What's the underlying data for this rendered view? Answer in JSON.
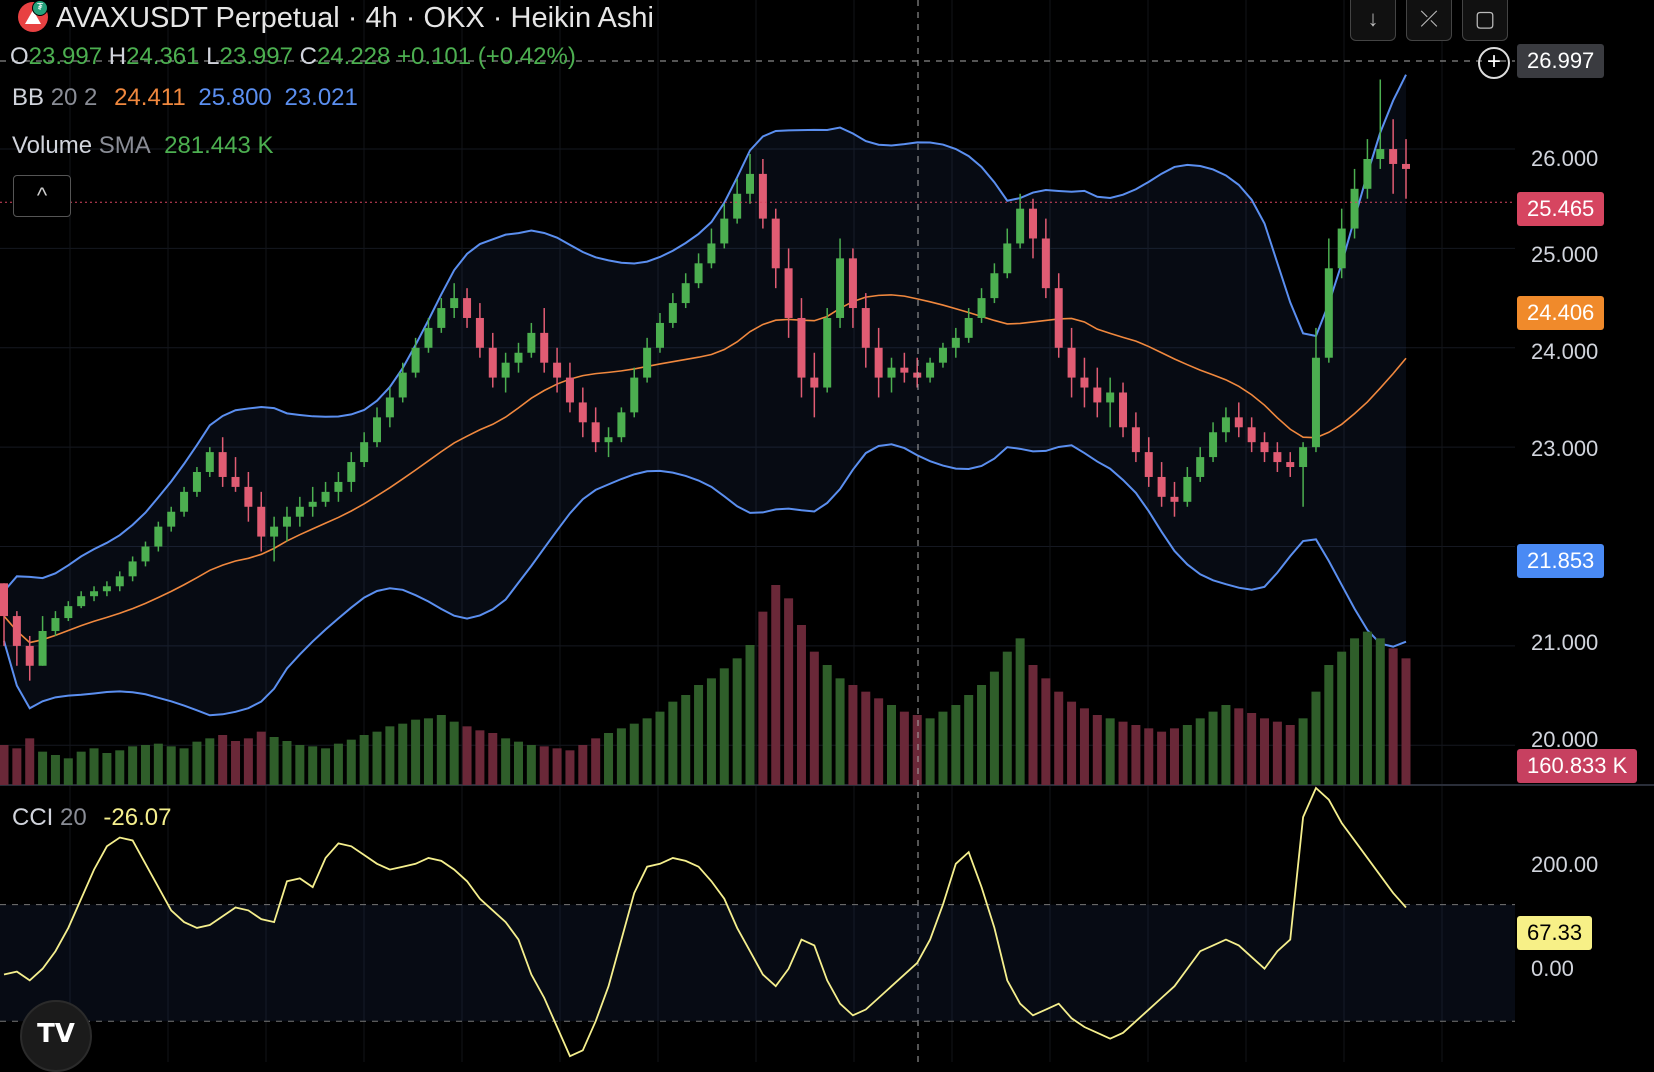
{
  "header": {
    "title": "AVAXUSDT Perpetual · 4h · OKX · Heikin Ashi",
    "ohlc": {
      "o_label": "O",
      "o": "23.997",
      "h_label": "H",
      "h": "24.361",
      "l_label": "L",
      "l": "23.997",
      "c_label": "C",
      "c": "24.228",
      "change": "+0.101 (+0.42%)"
    }
  },
  "indicators": {
    "bb": {
      "label": "BB",
      "params": "20 2",
      "basis": "24.411",
      "upper": "25.800",
      "lower": "23.021"
    },
    "volume": {
      "label": "Volume",
      "ma": "SMA",
      "value": "281.443 K"
    },
    "cci": {
      "label": "CCI",
      "params": "20",
      "value": "-26.07"
    }
  },
  "price_axis": {
    "ticks": [
      "26.000",
      "25.000",
      "24.000",
      "23.000",
      "21.000",
      "20.000"
    ],
    "tags": {
      "crosshair": "26.997",
      "last_price": "25.465",
      "bb_basis": "24.406",
      "bb_lower": "21.853",
      "volume": "160.833 K"
    }
  },
  "cci_axis": {
    "ticks": [
      "200.00",
      "0.00"
    ],
    "tag": "67.33"
  },
  "toolbar": {
    "down_icon": "↓",
    "collapse_icon": "⤫",
    "fullscreen_icon": "▢",
    "collapse_legend_icon": "^"
  },
  "colors": {
    "up": "#4caf50",
    "down": "#e05c73",
    "bb_band": "#5b8ff0",
    "bb_basis": "#f0883e",
    "cci": "#f5ef8d",
    "last_price": "#d64560",
    "basis_tag": "#f08a2b",
    "lower_tag": "#4a8af4",
    "volume_tag": "#c74060",
    "cci_tag": "#f7f087"
  },
  "chart_data": {
    "type": "candlestick",
    "price_range": [
      19.6,
      27.5
    ],
    "cci_range": [
      -170,
      300
    ],
    "candles": [
      [
        21.63,
        21.63,
        21.0,
        21.3
      ],
      [
        21.3,
        21.35,
        20.8,
        21.0
      ],
      [
        21.0,
        21.1,
        20.65,
        20.8
      ],
      [
        20.8,
        21.3,
        20.8,
        21.15
      ],
      [
        21.15,
        21.35,
        21.1,
        21.28
      ],
      [
        21.28,
        21.45,
        21.25,
        21.4
      ],
      [
        21.4,
        21.55,
        21.38,
        21.5
      ],
      [
        21.5,
        21.6,
        21.45,
        21.55
      ],
      [
        21.55,
        21.65,
        21.5,
        21.6
      ],
      [
        21.6,
        21.75,
        21.55,
        21.7
      ],
      [
        21.7,
        21.9,
        21.65,
        21.85
      ],
      [
        21.85,
        22.05,
        21.8,
        22.0
      ],
      [
        22.0,
        22.25,
        21.95,
        22.2
      ],
      [
        22.2,
        22.4,
        22.15,
        22.35
      ],
      [
        22.35,
        22.6,
        22.3,
        22.55
      ],
      [
        22.55,
        22.8,
        22.5,
        22.75
      ],
      [
        22.75,
        23.0,
        22.7,
        22.95
      ],
      [
        22.95,
        23.1,
        22.6,
        22.7
      ],
      [
        22.7,
        22.9,
        22.55,
        22.6
      ],
      [
        22.6,
        22.75,
        22.25,
        22.4
      ],
      [
        22.4,
        22.55,
        21.95,
        22.1
      ],
      [
        22.1,
        22.3,
        21.85,
        22.2
      ],
      [
        22.2,
        22.4,
        22.05,
        22.3
      ],
      [
        22.3,
        22.5,
        22.2,
        22.4
      ],
      [
        22.4,
        22.6,
        22.3,
        22.45
      ],
      [
        22.45,
        22.65,
        22.4,
        22.55
      ],
      [
        22.55,
        22.75,
        22.45,
        22.65
      ],
      [
        22.65,
        22.95,
        22.55,
        22.85
      ],
      [
        22.85,
        23.15,
        22.8,
        23.05
      ],
      [
        23.05,
        23.4,
        23.0,
        23.3
      ],
      [
        23.3,
        23.6,
        23.2,
        23.5
      ],
      [
        23.5,
        23.85,
        23.45,
        23.75
      ],
      [
        23.75,
        24.1,
        23.7,
        24.0
      ],
      [
        24.0,
        24.3,
        23.95,
        24.2
      ],
      [
        24.2,
        24.5,
        24.15,
        24.4
      ],
      [
        24.4,
        24.65,
        24.3,
        24.5
      ],
      [
        24.5,
        24.6,
        24.2,
        24.3
      ],
      [
        24.3,
        24.45,
        23.9,
        24.0
      ],
      [
        24.0,
        24.15,
        23.6,
        23.7
      ],
      [
        23.7,
        23.95,
        23.55,
        23.85
      ],
      [
        23.85,
        24.05,
        23.75,
        23.95
      ],
      [
        23.95,
        24.25,
        23.9,
        24.15
      ],
      [
        24.15,
        24.4,
        23.75,
        23.85
      ],
      [
        23.85,
        24.0,
        23.55,
        23.7
      ],
      [
        23.7,
        23.85,
        23.35,
        23.45
      ],
      [
        23.45,
        23.6,
        23.1,
        23.25
      ],
      [
        23.25,
        23.4,
        22.95,
        23.05
      ],
      [
        23.05,
        23.2,
        22.9,
        23.1
      ],
      [
        23.1,
        23.4,
        23.05,
        23.35
      ],
      [
        23.35,
        23.8,
        23.3,
        23.7
      ],
      [
        23.7,
        24.1,
        23.65,
        24.0
      ],
      [
        24.0,
        24.35,
        23.95,
        24.25
      ],
      [
        24.25,
        24.55,
        24.2,
        24.45
      ],
      [
        24.45,
        24.75,
        24.4,
        24.65
      ],
      [
        24.65,
        24.95,
        24.6,
        24.85
      ],
      [
        24.85,
        25.2,
        24.8,
        25.05
      ],
      [
        25.05,
        25.45,
        25.0,
        25.3
      ],
      [
        25.3,
        25.7,
        25.25,
        25.55
      ],
      [
        25.55,
        25.95,
        25.45,
        25.75
      ],
      [
        25.75,
        25.9,
        25.2,
        25.3
      ],
      [
        25.3,
        25.4,
        24.6,
        24.8
      ],
      [
        24.8,
        25.0,
        24.1,
        24.3
      ],
      [
        24.3,
        24.5,
        23.5,
        23.7
      ],
      [
        23.7,
        23.95,
        23.3,
        23.6
      ],
      [
        23.6,
        24.4,
        23.55,
        24.3
      ],
      [
        24.3,
        25.1,
        24.2,
        24.9
      ],
      [
        24.9,
        25.0,
        24.2,
        24.4
      ],
      [
        24.4,
        24.55,
        23.8,
        24.0
      ],
      [
        24.0,
        24.2,
        23.5,
        23.7
      ],
      [
        23.7,
        23.9,
        23.55,
        23.8
      ],
      [
        23.8,
        23.95,
        23.65,
        23.75
      ],
      [
        23.75,
        23.9,
        23.6,
        23.7
      ],
      [
        23.7,
        23.9,
        23.65,
        23.85
      ],
      [
        23.85,
        24.05,
        23.8,
        24.0
      ],
      [
        24.0,
        24.2,
        23.9,
        24.1
      ],
      [
        24.1,
        24.4,
        24.05,
        24.3
      ],
      [
        24.3,
        24.6,
        24.25,
        24.5
      ],
      [
        24.5,
        24.85,
        24.45,
        24.75
      ],
      [
        24.75,
        25.2,
        24.7,
        25.05
      ],
      [
        25.05,
        25.55,
        25.0,
        25.4
      ],
      [
        25.4,
        25.5,
        24.9,
        25.1
      ],
      [
        25.1,
        25.3,
        24.5,
        24.6
      ],
      [
        24.6,
        24.75,
        23.9,
        24.0
      ],
      [
        24.0,
        24.2,
        23.5,
        23.7
      ],
      [
        23.7,
        23.9,
        23.4,
        23.6
      ],
      [
        23.6,
        23.8,
        23.3,
        23.45
      ],
      [
        23.45,
        23.7,
        23.2,
        23.55
      ],
      [
        23.55,
        23.65,
        23.1,
        23.2
      ],
      [
        23.2,
        23.35,
        22.85,
        22.95
      ],
      [
        22.95,
        23.1,
        22.6,
        22.7
      ],
      [
        22.7,
        22.85,
        22.4,
        22.5
      ],
      [
        22.5,
        22.65,
        22.3,
        22.45
      ],
      [
        22.45,
        22.8,
        22.4,
        22.7
      ],
      [
        22.7,
        23.0,
        22.65,
        22.9
      ],
      [
        22.9,
        23.25,
        22.85,
        23.15
      ],
      [
        23.15,
        23.4,
        23.05,
        23.3
      ],
      [
        23.3,
        23.45,
        23.1,
        23.2
      ],
      [
        23.2,
        23.3,
        22.95,
        23.05
      ],
      [
        23.05,
        23.15,
        22.85,
        22.95
      ],
      [
        22.95,
        23.05,
        22.75,
        22.85
      ],
      [
        22.85,
        22.95,
        22.7,
        22.8
      ],
      [
        22.8,
        23.05,
        22.4,
        23.0
      ],
      [
        23.0,
        24.2,
        22.95,
        23.9
      ],
      [
        23.9,
        25.1,
        23.85,
        24.8
      ],
      [
        24.8,
        25.4,
        24.7,
        25.2
      ],
      [
        25.2,
        25.8,
        25.1,
        25.6
      ],
      [
        25.6,
        26.1,
        25.5,
        25.9
      ],
      [
        25.9,
        26.7,
        25.8,
        26.0
      ],
      [
        26.0,
        26.3,
        25.55,
        25.85
      ],
      [
        25.85,
        26.1,
        25.5,
        25.8
      ]
    ],
    "volume": [
      60,
      55,
      70,
      50,
      45,
      40,
      50,
      55,
      48,
      52,
      58,
      60,
      62,
      58,
      55,
      65,
      70,
      75,
      66,
      70,
      80,
      72,
      66,
      60,
      58,
      55,
      62,
      68,
      75,
      80,
      88,
      92,
      98,
      100,
      105,
      95,
      88,
      82,
      78,
      70,
      65,
      60,
      58,
      55,
      52,
      60,
      70,
      78,
      85,
      92,
      100,
      110,
      125,
      135,
      150,
      160,
      175,
      190,
      210,
      260,
      300,
      280,
      240,
      200,
      180,
      160,
      150,
      140,
      130,
      120,
      110,
      105,
      100,
      110,
      120,
      135,
      150,
      170,
      200,
      220,
      180,
      160,
      140,
      125,
      115,
      105,
      100,
      95,
      90,
      85,
      80,
      85,
      90,
      100,
      110,
      120,
      115,
      108,
      100,
      95,
      90,
      100,
      140,
      180,
      200,
      220,
      230,
      220,
      205,
      190
    ],
    "cci": [
      -20,
      -15,
      -30,
      -10,
      20,
      60,
      110,
      160,
      200,
      215,
      210,
      170,
      130,
      90,
      70,
      60,
      65,
      80,
      95,
      90,
      75,
      70,
      140,
      145,
      130,
      180,
      205,
      200,
      185,
      170,
      160,
      165,
      170,
      180,
      175,
      160,
      140,
      110,
      90,
      70,
      40,
      -20,
      -60,
      -110,
      -160,
      -150,
      -100,
      -40,
      40,
      120,
      165,
      170,
      180,
      175,
      165,
      140,
      110,
      60,
      20,
      -20,
      -40,
      -10,
      40,
      30,
      -30,
      -70,
      -90,
      -80,
      -60,
      -40,
      -20,
      0,
      40,
      100,
      170,
      190,
      130,
      60,
      -30,
      -70,
      -90,
      -80,
      -70,
      -95,
      -110,
      -120,
      -130,
      -120,
      -100,
      -80,
      -60,
      -40,
      -10,
      20,
      30,
      40,
      30,
      10,
      -10,
      20,
      40,
      250,
      300,
      280,
      240,
      210,
      180,
      150,
      120,
      95
    ]
  }
}
